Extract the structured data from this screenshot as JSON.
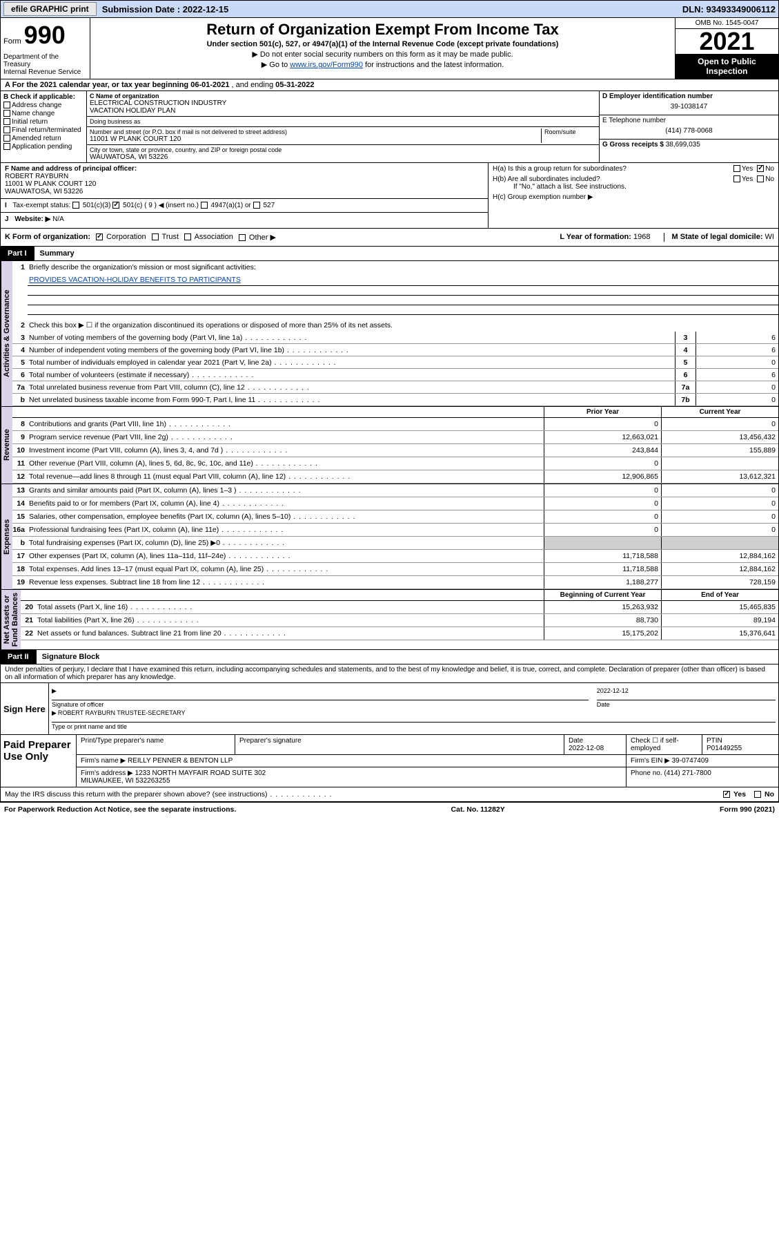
{
  "topbar": {
    "efile_label": "efile GRAPHIC print",
    "submission_label": "Submission Date : 2022-12-15",
    "dln": "DLN: 93493349006112"
  },
  "header": {
    "form_word": "Form",
    "form_num": "990",
    "title": "Return of Organization Exempt From Income Tax",
    "sub1": "Under section 501(c), 527, or 4947(a)(1) of the Internal Revenue Code (except private foundations)",
    "sub2": "▶ Do not enter social security numbers on this form as it may be made public.",
    "sub3_pre": "▶ Go to ",
    "sub3_link": "www.irs.gov/Form990",
    "sub3_post": " for instructions and the latest information.",
    "dept": "Department of the Treasury\nInternal Revenue Service",
    "omb": "OMB No. 1545-0047",
    "year": "2021",
    "inspection": "Open to Public Inspection"
  },
  "line_a": {
    "prefix": "A For the 2021 calendar year, or tax year beginning ",
    "beg": "06-01-2021",
    "mid": "   , and ending ",
    "end": "05-31-2022"
  },
  "col_b": {
    "hdr": "B Check if applicable:",
    "opts": [
      "Address change",
      "Name change",
      "Initial return",
      "Final return/terminated",
      "Amended return",
      "Application pending"
    ]
  },
  "col_c": {
    "name_lbl": "C Name of organization",
    "name": "ELECTRICAL CONSTRUCTION INDUSTRY\nVACATION HOLIDAY PLAN",
    "dba_lbl": "Doing business as",
    "dba": "",
    "addr_lbl": "Number and street (or P.O. box if mail is not delivered to street address)",
    "room_lbl": "Room/suite",
    "addr": "11001 W PLANK COURT 120",
    "city_lbl": "City or town, state or province, country, and ZIP or foreign postal code",
    "city": "WAUWATOSA, WI  53226"
  },
  "col_de": {
    "d_lbl": "D Employer identification number",
    "d_val": "39-1038147",
    "e_lbl": "E Telephone number",
    "e_val": "(414) 778-0068",
    "g_lbl": "G Gross receipts $",
    "g_val": "38,699,035"
  },
  "section_f": {
    "f_lbl": "F Name and address of principal officer:",
    "f_val": "ROBERT RAYBURN\n11001 W PLANK COURT 120\nWAUWATOSA, WI  53226",
    "i_lbl": "Tax-exempt status:",
    "i_opts": {
      "a": "501(c)(3)",
      "b": "501(c) ( 9 ) ◀ (insert no.)",
      "c": "4947(a)(1) or",
      "d": "527"
    },
    "j_lbl": "Website: ▶",
    "j_val": "N/A"
  },
  "section_h": {
    "ha": "H(a)  Is this a group return for subordinates?",
    "ha_yes": "Yes",
    "ha_no": "No",
    "hb": "H(b)  Are all subordinates included?",
    "hb_note": "If \"No,\" attach a list. See instructions.",
    "hc": "H(c)  Group exemption number ▶"
  },
  "row_k": {
    "k_lbl": "K Form of organization:",
    "opts": [
      "Corporation",
      "Trust",
      "Association",
      "Other ▶"
    ],
    "l_lbl": "L Year of formation: ",
    "l_val": "1968",
    "m_lbl": "M State of legal domicile: ",
    "m_val": "WI"
  },
  "part1": {
    "tag": "Part I",
    "title": "Summary",
    "gov_label": "Activities & Governance",
    "rev_label": "Revenue",
    "exp_label": "Expenses",
    "na_label": "Net Assets or\nFund Balances",
    "l1": "Briefly describe the organization's mission or most significant activities:",
    "l1_val": "PROVIDES VACATION-HOLIDAY BENEFITS TO PARTICIPANTS",
    "l2": "Check this box ▶ ☐  if the organization discontinued its operations or disposed of more than 25% of its net assets.",
    "rows_gov": [
      {
        "n": "3",
        "d": "Number of voting members of the governing body (Part VI, line 1a)",
        "box": "3",
        "v": "6"
      },
      {
        "n": "4",
        "d": "Number of independent voting members of the governing body (Part VI, line 1b)",
        "box": "4",
        "v": "6"
      },
      {
        "n": "5",
        "d": "Total number of individuals employed in calendar year 2021 (Part V, line 2a)",
        "box": "5",
        "v": "0"
      },
      {
        "n": "6",
        "d": "Total number of volunteers (estimate if necessary)",
        "box": "6",
        "v": "6"
      },
      {
        "n": "7a",
        "d": "Total unrelated business revenue from Part VIII, column (C), line 12",
        "box": "7a",
        "v": "0"
      },
      {
        "n": "b",
        "d": "Net unrelated business taxable income from Form 990-T, Part I, line 11",
        "box": "7b",
        "v": "0"
      }
    ],
    "hdr_prior": "Prior Year",
    "hdr_curr": "Current Year",
    "rows_rev": [
      {
        "n": "8",
        "d": "Contributions and grants (Part VIII, line 1h)",
        "p": "0",
        "c": "0"
      },
      {
        "n": "9",
        "d": "Program service revenue (Part VIII, line 2g)",
        "p": "12,663,021",
        "c": "13,456,432"
      },
      {
        "n": "10",
        "d": "Investment income (Part VIII, column (A), lines 3, 4, and 7d )",
        "p": "243,844",
        "c": "155,889"
      },
      {
        "n": "11",
        "d": "Other revenue (Part VIII, column (A), lines 5, 6d, 8c, 9c, 10c, and 11e)",
        "p": "0",
        "c": ""
      },
      {
        "n": "12",
        "d": "Total revenue—add lines 8 through 11 (must equal Part VIII, column (A), line 12)",
        "p": "12,906,865",
        "c": "13,612,321"
      }
    ],
    "rows_exp": [
      {
        "n": "13",
        "d": "Grants and similar amounts paid (Part IX, column (A), lines 1–3 )",
        "p": "0",
        "c": "0"
      },
      {
        "n": "14",
        "d": "Benefits paid to or for members (Part IX, column (A), line 4)",
        "p": "0",
        "c": "0"
      },
      {
        "n": "15",
        "d": "Salaries, other compensation, employee benefits (Part IX, column (A), lines 5–10)",
        "p": "0",
        "c": "0"
      },
      {
        "n": "16a",
        "d": "Professional fundraising fees (Part IX, column (A), line 11e)",
        "p": "0",
        "c": "0"
      },
      {
        "n": "b",
        "d": "Total fundraising expenses (Part IX, column (D), line 25) ▶0",
        "p": "grey",
        "c": "grey"
      },
      {
        "n": "17",
        "d": "Other expenses (Part IX, column (A), lines 11a–11d, 11f–24e)",
        "p": "11,718,588",
        "c": "12,884,162"
      },
      {
        "n": "18",
        "d": "Total expenses. Add lines 13–17 (must equal Part IX, column (A), line 25)",
        "p": "11,718,588",
        "c": "12,884,162"
      },
      {
        "n": "19",
        "d": "Revenue less expenses. Subtract line 18 from line 12",
        "p": "1,188,277",
        "c": "728,159"
      }
    ],
    "hdr_beg": "Beginning of Current Year",
    "hdr_end": "End of Year",
    "rows_na": [
      {
        "n": "20",
        "d": "Total assets (Part X, line 16)",
        "p": "15,263,932",
        "c": "15,465,835"
      },
      {
        "n": "21",
        "d": "Total liabilities (Part X, line 26)",
        "p": "88,730",
        "c": "89,194"
      },
      {
        "n": "22",
        "d": "Net assets or fund balances. Subtract line 21 from line 20",
        "p": "15,175,202",
        "c": "15,376,641"
      }
    ]
  },
  "part2": {
    "tag": "Part II",
    "title": "Signature Block",
    "decl": "Under penalties of perjury, I declare that I have examined this return, including accompanying schedules and statements, and to the best of my knowledge and belief, it is true, correct, and complete. Declaration of preparer (other than officer) is based on all information of which preparer has any knowledge.",
    "sign_here": "Sign Here",
    "sig_lbl": "Signature of officer",
    "date_lbl": "Date",
    "date_val": "2022-12-12",
    "name_val": "ROBERT RAYBURN  TRUSTEE-SECRETARY",
    "name_lbl": "Type or print name and title",
    "paid_lbl": "Paid Preparer Use Only",
    "pp_hdr": [
      "Print/Type preparer's name",
      "Preparer's signature",
      "Date",
      "",
      "PTIN"
    ],
    "pp_date": "2022-12-08",
    "pp_check": "Check ☐ if self-employed",
    "pp_ptin": "P01449255",
    "firm_name_lbl": "Firm's name    ▶",
    "firm_name": "REILLY PENNER & BENTON LLP",
    "firm_ein_lbl": "Firm's EIN ▶",
    "firm_ein": "39-0747409",
    "firm_addr_lbl": "Firm's address ▶",
    "firm_addr": "1233 NORTH MAYFAIR ROAD SUITE 302\nMILWAUKEE, WI  532263255",
    "phone_lbl": "Phone no.",
    "phone": "(414) 271-7800",
    "may_irs": "May the IRS discuss this return with the preparer shown above? (see instructions)",
    "yes": "Yes",
    "no": "No"
  },
  "footer": {
    "l": "For Paperwork Reduction Act Notice, see the separate instructions.",
    "c": "Cat. No. 11282Y",
    "r": "Form 990 (2021)"
  }
}
